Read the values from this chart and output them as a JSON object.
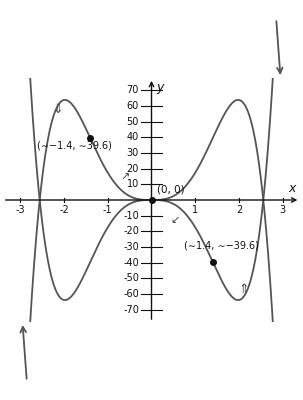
{
  "xlabel": "x",
  "ylabel": "y",
  "xlim": [
    -3.4,
    3.4
  ],
  "ylim": [
    -78,
    78
  ],
  "xticks": [
    -3,
    -2,
    -1,
    1,
    2,
    3
  ],
  "yticks": [
    -70,
    -60,
    -50,
    -40,
    -30,
    -20,
    -10,
    10,
    20,
    30,
    40,
    50,
    60,
    70
  ],
  "curve_color": "#555555",
  "curve_linewidth": 1.3,
  "point_color": "#111111",
  "point_size": 4,
  "inflection_points": [
    [
      0,
      0
    ],
    [
      -1.4,
      39.6
    ],
    [
      1.4,
      -39.6
    ]
  ],
  "background_color": "#ffffff",
  "axis_color": "#111111",
  "tick_fontsize": 7,
  "label_fontsize": 9,
  "c": 3.155,
  "b": 6.533,
  "x_start": -3.1,
  "x_end": 3.1
}
